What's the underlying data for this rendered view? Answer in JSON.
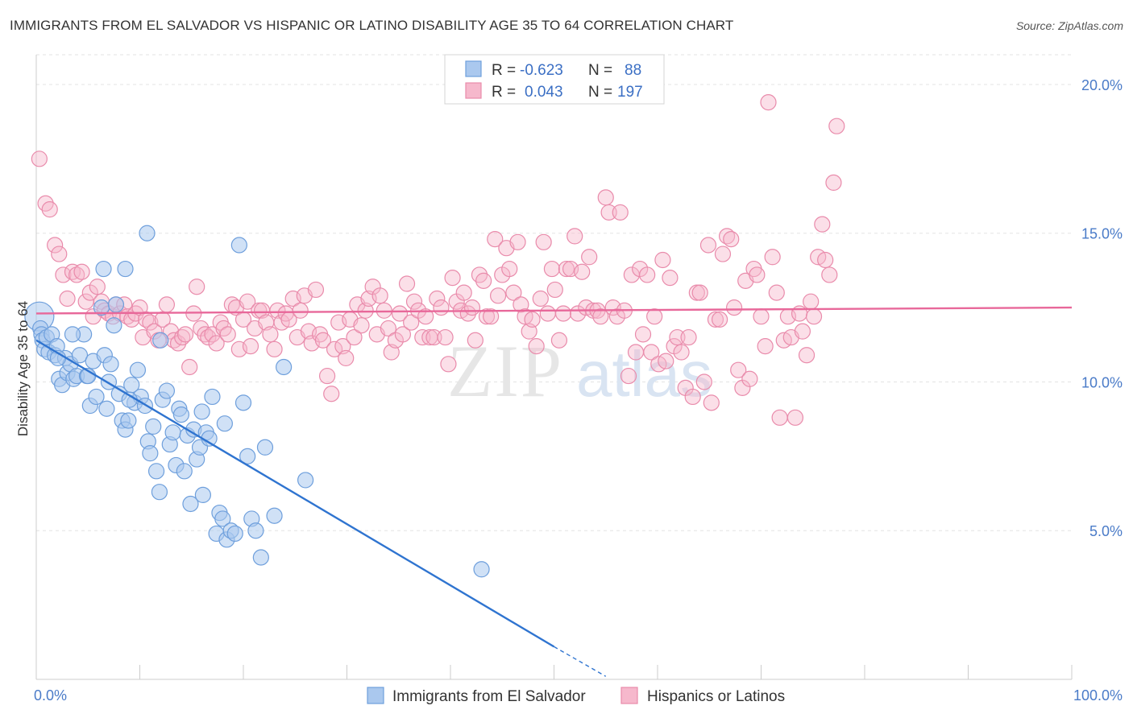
{
  "title": "IMMIGRANTS FROM EL SALVADOR VS HISPANIC OR LATINO DISABILITY AGE 35 TO 64 CORRELATION CHART",
  "source": "Source: ZipAtlas.com",
  "watermark": {
    "zip": "ZIP",
    "atlas": "atlas"
  },
  "colors": {
    "blue_fill": "#aac8ee",
    "blue_stroke": "#6e9fdc",
    "blue_line": "#2f74d0",
    "pink_fill": "#f6b8cc",
    "pink_stroke": "#e98bab",
    "pink_line": "#e8689a",
    "tick_label": "#4a7bc8",
    "grid": "#e3e3e3"
  },
  "stats_legend": {
    "rows": [
      {
        "r_label": "R =",
        "r_value": "-0.623",
        "n_label": "N =",
        "n_value": "88",
        "color": "blue"
      },
      {
        "r_label": "R =",
        "r_value": "0.043",
        "n_label": "N =",
        "n_value": "197",
        "color": "pink"
      }
    ]
  },
  "chart_data": {
    "type": "scatter",
    "title": "IMMIGRANTS FROM EL SALVADOR VS HISPANIC OR LATINO DISABILITY AGE 35 TO 64 CORRELATION CHART",
    "xlabel": "",
    "ylabel": "Disability Age 35 to 64",
    "xlim": [
      0,
      100
    ],
    "ylim": [
      0,
      21
    ],
    "x_tick_labels": [
      "0.0%",
      "100.0%"
    ],
    "y_ticks": [
      5,
      10,
      15,
      20
    ],
    "y_tick_labels": [
      "5.0%",
      "10.0%",
      "15.0%",
      "20.0%"
    ],
    "grid": true,
    "legend_position": "bottom",
    "series": [
      {
        "name": "Immigrants from El Salvador",
        "color": "blue",
        "trend": {
          "x0": 0,
          "y0": 11.4,
          "x1": 50,
          "y1": 1.1,
          "dashed_to_x": 55,
          "dashed_to_y": 0.1
        },
        "points": [
          [
            0.3,
            12.2
          ],
          [
            0.4,
            11.8
          ],
          [
            0.5,
            11.6
          ],
          [
            0.6,
            11.4
          ],
          [
            0.8,
            11.1
          ],
          [
            1.0,
            11.5
          ],
          [
            1.2,
            11.0
          ],
          [
            1.5,
            11.6
          ],
          [
            1.8,
            10.9
          ],
          [
            2.0,
            11.2
          ],
          [
            2.2,
            10.1
          ],
          [
            2.5,
            9.9
          ],
          [
            2.8,
            10.8
          ],
          [
            3.0,
            10.3
          ],
          [
            3.3,
            10.6
          ],
          [
            3.6,
            10.1
          ],
          [
            3.9,
            10.2
          ],
          [
            4.2,
            10.9
          ],
          [
            4.6,
            11.6
          ],
          [
            4.9,
            10.2
          ],
          [
            5.2,
            9.2
          ],
          [
            5.5,
            10.7
          ],
          [
            5.8,
            9.5
          ],
          [
            6.3,
            12.5
          ],
          [
            6.6,
            10.9
          ],
          [
            6.8,
            9.1
          ],
          [
            7.2,
            10.6
          ],
          [
            7.5,
            11.9
          ],
          [
            7.7,
            12.6
          ],
          [
            8.0,
            9.6
          ],
          [
            8.3,
            8.7
          ],
          [
            8.6,
            8.4
          ],
          [
            8.9,
            8.7
          ],
          [
            9.2,
            9.9
          ],
          [
            9.5,
            9.3
          ],
          [
            9.8,
            10.4
          ],
          [
            10.1,
            9.5
          ],
          [
            10.5,
            9.2
          ],
          [
            10.8,
            8.0
          ],
          [
            11.0,
            7.6
          ],
          [
            11.3,
            8.5
          ],
          [
            11.6,
            7.0
          ],
          [
            11.9,
            6.3
          ],
          [
            12.2,
            9.4
          ],
          [
            12.6,
            9.7
          ],
          [
            12.9,
            7.9
          ],
          [
            13.2,
            8.3
          ],
          [
            13.5,
            7.2
          ],
          [
            13.8,
            9.1
          ],
          [
            14.0,
            8.9
          ],
          [
            14.3,
            7.0
          ],
          [
            14.6,
            8.2
          ],
          [
            14.9,
            5.9
          ],
          [
            15.2,
            8.4
          ],
          [
            15.5,
            7.4
          ],
          [
            15.8,
            7.8
          ],
          [
            16.1,
            6.2
          ],
          [
            16.4,
            8.3
          ],
          [
            16.7,
            8.1
          ],
          [
            17.0,
            9.5
          ],
          [
            17.4,
            4.9
          ],
          [
            17.7,
            5.6
          ],
          [
            18.0,
            5.4
          ],
          [
            18.4,
            4.7
          ],
          [
            18.8,
            5.0
          ],
          [
            19.2,
            4.9
          ],
          [
            19.6,
            14.6
          ],
          [
            20.0,
            9.3
          ],
          [
            20.4,
            7.5
          ],
          [
            20.8,
            5.4
          ],
          [
            21.2,
            5.0
          ],
          [
            21.7,
            4.1
          ],
          [
            22.1,
            7.8
          ],
          [
            23.0,
            5.5
          ],
          [
            23.9,
            10.5
          ],
          [
            26.0,
            6.7
          ],
          [
            43.0,
            3.7
          ],
          [
            10.7,
            15.0
          ],
          [
            8.6,
            13.8
          ],
          [
            6.5,
            13.8
          ],
          [
            3.5,
            11.6
          ],
          [
            2.1,
            10.8
          ],
          [
            5.0,
            10.2
          ],
          [
            12.0,
            11.4
          ],
          [
            9.0,
            9.4
          ],
          [
            7.0,
            10.0
          ],
          [
            16.0,
            9.0
          ],
          [
            18.2,
            8.6
          ]
        ]
      },
      {
        "name": "Hispanics or Latinos",
        "color": "pink",
        "trend": {
          "x0": 0,
          "y0": 12.3,
          "x1": 100,
          "y1": 12.5
        },
        "points": [
          [
            0.3,
            17.5
          ],
          [
            0.9,
            16.0
          ],
          [
            1.3,
            15.8
          ],
          [
            1.8,
            14.6
          ],
          [
            2.2,
            14.3
          ],
          [
            2.6,
            13.6
          ],
          [
            3.0,
            12.8
          ],
          [
            3.5,
            13.7
          ],
          [
            3.9,
            13.6
          ],
          [
            4.4,
            13.7
          ],
          [
            4.8,
            12.7
          ],
          [
            5.2,
            13.0
          ],
          [
            5.5,
            12.2
          ],
          [
            5.9,
            13.2
          ],
          [
            6.3,
            12.7
          ],
          [
            6.6,
            12.4
          ],
          [
            7.0,
            12.3
          ],
          [
            7.4,
            12.2
          ],
          [
            7.7,
            12.6
          ],
          [
            8.1,
            12.3
          ],
          [
            8.5,
            12.6
          ],
          [
            8.8,
            12.2
          ],
          [
            9.2,
            12.1
          ],
          [
            9.6,
            12.3
          ],
          [
            10.0,
            12.5
          ],
          [
            10.3,
            11.5
          ],
          [
            10.6,
            12.1
          ],
          [
            11.0,
            12.0
          ],
          [
            11.4,
            11.7
          ],
          [
            11.8,
            11.4
          ],
          [
            12.2,
            12.1
          ],
          [
            12.6,
            12.6
          ],
          [
            13.0,
            11.7
          ],
          [
            13.3,
            11.4
          ],
          [
            13.7,
            11.3
          ],
          [
            14.1,
            11.5
          ],
          [
            14.4,
            11.6
          ],
          [
            14.8,
            10.5
          ],
          [
            15.2,
            12.3
          ],
          [
            15.5,
            13.2
          ],
          [
            15.9,
            11.8
          ],
          [
            16.3,
            11.6
          ],
          [
            16.6,
            11.5
          ],
          [
            17.0,
            11.6
          ],
          [
            17.4,
            11.3
          ],
          [
            17.8,
            12.0
          ],
          [
            18.1,
            11.8
          ],
          [
            18.5,
            11.6
          ],
          [
            18.9,
            12.6
          ],
          [
            19.3,
            12.5
          ],
          [
            19.6,
            11.1
          ],
          [
            20.0,
            12.1
          ],
          [
            20.4,
            12.7
          ],
          [
            20.7,
            11.2
          ],
          [
            21.1,
            11.8
          ],
          [
            21.5,
            12.4
          ],
          [
            21.8,
            12.4
          ],
          [
            22.2,
            12.0
          ],
          [
            22.6,
            11.6
          ],
          [
            23.0,
            11.1
          ],
          [
            23.3,
            12.4
          ],
          [
            23.7,
            12.0
          ],
          [
            24.1,
            12.3
          ],
          [
            24.4,
            12.1
          ],
          [
            24.8,
            12.8
          ],
          [
            25.2,
            11.5
          ],
          [
            25.5,
            12.4
          ],
          [
            25.9,
            12.9
          ],
          [
            26.3,
            11.7
          ],
          [
            26.6,
            11.3
          ],
          [
            27.0,
            13.1
          ],
          [
            27.4,
            11.6
          ],
          [
            27.7,
            11.4
          ],
          [
            28.1,
            10.2
          ],
          [
            28.5,
            9.6
          ],
          [
            28.8,
            11.1
          ],
          [
            29.2,
            12.0
          ],
          [
            29.6,
            11.2
          ],
          [
            29.9,
            10.8
          ],
          [
            30.3,
            12.1
          ],
          [
            30.7,
            11.5
          ],
          [
            31.0,
            12.6
          ],
          [
            31.4,
            11.9
          ],
          [
            31.8,
            12.4
          ],
          [
            32.1,
            12.8
          ],
          [
            32.5,
            13.2
          ],
          [
            32.9,
            11.6
          ],
          [
            33.2,
            12.9
          ],
          [
            33.6,
            12.4
          ],
          [
            34.0,
            11.8
          ],
          [
            34.3,
            11.0
          ],
          [
            34.7,
            11.4
          ],
          [
            35.1,
            12.3
          ],
          [
            35.4,
            11.6
          ],
          [
            35.8,
            13.3
          ],
          [
            36.2,
            12.0
          ],
          [
            36.5,
            12.7
          ],
          [
            36.9,
            12.4
          ],
          [
            37.3,
            11.5
          ],
          [
            37.6,
            12.2
          ],
          [
            38.0,
            11.5
          ],
          [
            38.4,
            11.5
          ],
          [
            38.7,
            12.8
          ],
          [
            39.1,
            12.5
          ],
          [
            39.5,
            11.5
          ],
          [
            39.8,
            10.6
          ],
          [
            40.2,
            13.5
          ],
          [
            40.6,
            12.7
          ],
          [
            41.0,
            12.4
          ],
          [
            41.3,
            13.0
          ],
          [
            41.7,
            12.3
          ],
          [
            42.1,
            12.5
          ],
          [
            42.4,
            11.4
          ],
          [
            42.8,
            13.6
          ],
          [
            43.2,
            13.4
          ],
          [
            43.5,
            12.2
          ],
          [
            43.9,
            12.2
          ],
          [
            44.3,
            14.8
          ],
          [
            44.6,
            12.9
          ],
          [
            45.0,
            13.6
          ],
          [
            45.4,
            14.5
          ],
          [
            45.7,
            13.8
          ],
          [
            46.1,
            13.0
          ],
          [
            46.5,
            14.7
          ],
          [
            46.8,
            12.6
          ],
          [
            47.2,
            12.2
          ],
          [
            47.6,
            11.7
          ],
          [
            47.9,
            12.1
          ],
          [
            48.3,
            11.2
          ],
          [
            48.7,
            12.8
          ],
          [
            49.0,
            14.7
          ],
          [
            49.4,
            12.3
          ],
          [
            49.8,
            13.8
          ],
          [
            50.1,
            13.1
          ],
          [
            50.5,
            11.4
          ],
          [
            50.9,
            12.3
          ],
          [
            51.2,
            13.8
          ],
          [
            51.6,
            13.8
          ],
          [
            52.0,
            14.9
          ],
          [
            52.3,
            12.3
          ],
          [
            52.7,
            13.7
          ],
          [
            53.1,
            12.5
          ],
          [
            53.4,
            14.2
          ],
          [
            53.8,
            12.4
          ],
          [
            54.2,
            12.4
          ],
          [
            54.5,
            12.2
          ],
          [
            55.0,
            16.2
          ],
          [
            55.3,
            15.7
          ],
          [
            55.7,
            12.5
          ],
          [
            56.1,
            12.2
          ],
          [
            56.4,
            15.7
          ],
          [
            56.8,
            12.4
          ],
          [
            57.2,
            10.2
          ],
          [
            57.5,
            13.6
          ],
          [
            57.9,
            11.0
          ],
          [
            58.3,
            13.8
          ],
          [
            58.6,
            11.6
          ],
          [
            59.0,
            13.6
          ],
          [
            59.4,
            11.0
          ],
          [
            59.7,
            12.2
          ],
          [
            60.1,
            10.6
          ],
          [
            60.5,
            14.1
          ],
          [
            60.8,
            10.7
          ],
          [
            61.2,
            13.5
          ],
          [
            61.6,
            11.2
          ],
          [
            61.9,
            11.5
          ],
          [
            62.3,
            11.0
          ],
          [
            62.7,
            9.8
          ],
          [
            63.0,
            11.5
          ],
          [
            63.4,
            9.5
          ],
          [
            63.8,
            13.0
          ],
          [
            64.1,
            13.0
          ],
          [
            64.5,
            10.0
          ],
          [
            64.9,
            14.6
          ],
          [
            65.2,
            9.3
          ],
          [
            65.6,
            12.1
          ],
          [
            66.0,
            12.1
          ],
          [
            66.3,
            14.3
          ],
          [
            66.7,
            14.9
          ],
          [
            67.1,
            14.8
          ],
          [
            67.4,
            12.5
          ],
          [
            67.8,
            10.4
          ],
          [
            68.2,
            9.8
          ],
          [
            68.5,
            13.4
          ],
          [
            68.9,
            10.1
          ],
          [
            69.3,
            13.8
          ],
          [
            69.6,
            13.6
          ],
          [
            70.0,
            12.2
          ],
          [
            70.4,
            11.2
          ],
          [
            70.7,
            19.4
          ],
          [
            71.1,
            14.2
          ],
          [
            71.5,
            13.0
          ],
          [
            71.8,
            8.8
          ],
          [
            72.2,
            11.4
          ],
          [
            72.6,
            12.2
          ],
          [
            72.9,
            11.5
          ],
          [
            73.3,
            8.8
          ],
          [
            73.7,
            12.3
          ],
          [
            74.0,
            11.7
          ],
          [
            74.4,
            10.9
          ],
          [
            74.8,
            12.7
          ],
          [
            75.1,
            12.2
          ],
          [
            75.5,
            14.2
          ],
          [
            75.9,
            15.3
          ],
          [
            76.2,
            14.1
          ],
          [
            76.6,
            13.6
          ],
          [
            77.0,
            16.7
          ],
          [
            77.3,
            18.6
          ]
        ]
      }
    ]
  },
  "bottom_legend": [
    {
      "label": "Immigrants from El Salvador",
      "color": "blue"
    },
    {
      "label": "Hispanics or Latinos",
      "color": "pink"
    }
  ]
}
